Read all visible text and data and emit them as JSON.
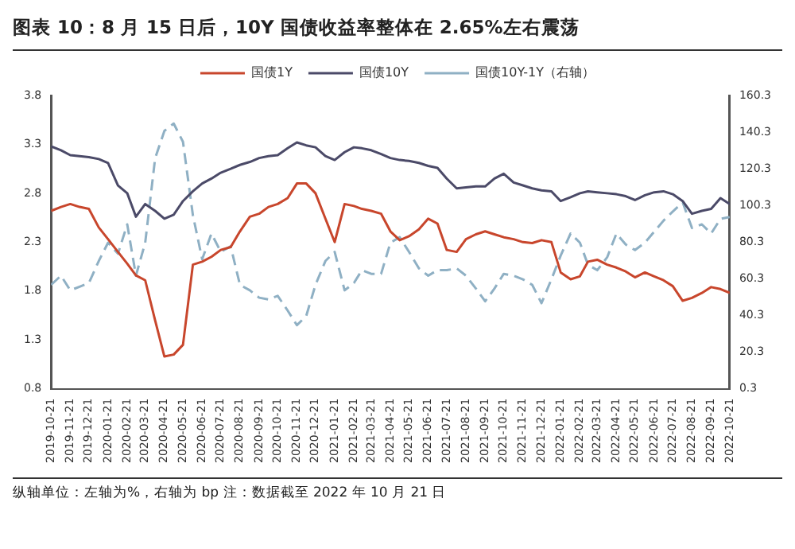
{
  "chart_data": {
    "type": "line",
    "title": "图表 10：8 月 15 日后，10Y 国债收益率整体在 2.65%左右震荡",
    "x": [
      "2019-10-21",
      "2019-11-06",
      "2019-11-21",
      "2019-12-06",
      "2019-12-21",
      "2020-01-06",
      "2020-01-21",
      "2020-02-06",
      "2020-02-21",
      "2020-03-06",
      "2020-03-21",
      "2020-04-06",
      "2020-04-21",
      "2020-05-06",
      "2020-05-21",
      "2020-06-06",
      "2020-06-21",
      "2020-07-06",
      "2020-07-21",
      "2020-08-06",
      "2020-08-21",
      "2020-09-06",
      "2020-09-21",
      "2020-10-06",
      "2020-10-21",
      "2020-11-06",
      "2020-11-21",
      "2020-12-06",
      "2020-12-21",
      "2021-01-06",
      "2021-01-21",
      "2021-02-06",
      "2021-02-21",
      "2021-03-06",
      "2021-03-21",
      "2021-04-06",
      "2021-04-21",
      "2021-05-06",
      "2021-05-21",
      "2021-06-06",
      "2021-06-21",
      "2021-07-06",
      "2021-07-21",
      "2021-08-06",
      "2021-08-21",
      "2021-09-06",
      "2021-09-21",
      "2021-10-06",
      "2021-10-21",
      "2021-11-06",
      "2021-11-21",
      "2021-12-06",
      "2021-12-21",
      "2022-01-06",
      "2022-01-21",
      "2022-02-06",
      "2022-02-21",
      "2022-03-06",
      "2022-03-21",
      "2022-04-06",
      "2022-04-21",
      "2022-05-06",
      "2022-05-21",
      "2022-06-06",
      "2022-06-21",
      "2022-07-06",
      "2022-07-21",
      "2022-08-06",
      "2022-08-21",
      "2022-09-06",
      "2022-09-21",
      "2022-10-06",
      "2022-10-21"
    ],
    "series": [
      {
        "name": "国债1Y",
        "color": "#c8462c",
        "values": [
          2.62,
          2.66,
          2.69,
          2.66,
          2.64,
          2.45,
          2.33,
          2.2,
          2.08,
          1.96,
          1.91,
          1.5,
          1.13,
          1.15,
          1.25,
          2.07,
          2.1,
          2.15,
          2.22,
          2.25,
          2.41,
          2.56,
          2.59,
          2.66,
          2.69,
          2.75,
          2.9,
          2.9,
          2.8,
          2.54,
          2.3,
          2.69,
          2.67,
          2.64,
          2.62,
          2.59,
          2.41,
          2.32,
          2.36,
          2.43,
          2.54,
          2.49,
          2.22,
          2.2,
          2.33,
          2.38,
          2.41,
          2.38,
          2.35,
          2.33,
          2.3,
          2.29,
          2.32,
          2.3,
          1.99,
          1.92,
          1.95,
          2.1,
          2.12,
          2.07,
          2.04,
          2.0,
          1.94,
          1.99,
          1.95,
          1.91,
          1.85,
          1.7,
          1.73,
          1.78,
          1.84,
          1.82,
          1.78
        ]
      },
      {
        "name": "国债10Y",
        "color": "#4b4a68",
        "values": [
          3.28,
          3.24,
          3.19,
          3.18,
          3.17,
          3.15,
          3.11,
          2.88,
          2.8,
          2.56,
          2.69,
          2.62,
          2.54,
          2.58,
          2.72,
          2.82,
          2.9,
          2.95,
          3.01,
          3.05,
          3.09,
          3.12,
          3.16,
          3.18,
          3.19,
          3.26,
          3.32,
          3.29,
          3.27,
          3.18,
          3.14,
          3.22,
          3.27,
          3.26,
          3.24,
          3.2,
          3.16,
          3.14,
          3.13,
          3.11,
          3.08,
          3.06,
          2.95,
          2.85,
          2.86,
          2.87,
          2.87,
          2.95,
          3.0,
          2.91,
          2.88,
          2.85,
          2.83,
          2.82,
          2.72,
          2.76,
          2.8,
          2.82,
          2.81,
          2.8,
          2.79,
          2.77,
          2.73,
          2.78,
          2.81,
          2.82,
          2.79,
          2.72,
          2.59,
          2.62,
          2.64,
          2.75,
          2.69
        ]
      },
      {
        "name": "国债10Y-1Y（右轴）",
        "color": "#8fb0c4",
        "axis": "y2",
        "line_style": "dashed",
        "values": [
          57,
          62,
          54,
          56,
          58,
          70,
          80,
          74,
          90,
          62,
          80,
          126,
          141,
          145,
          135,
          95,
          71,
          85,
          75,
          78,
          57,
          54,
          50,
          49,
          51,
          43,
          35,
          40,
          57,
          70,
          75,
          54,
          58,
          65,
          63,
          63,
          80,
          83,
          75,
          66,
          62,
          65,
          65,
          66,
          62,
          55,
          48,
          55,
          63,
          62,
          60,
          57,
          47,
          60,
          73,
          85,
          80,
          68,
          65,
          72,
          85,
          79,
          76,
          80,
          86,
          92,
          97,
          102,
          88,
          90,
          85,
          93,
          94
        ]
      }
    ],
    "xlim": [
      "2019-10-21",
      "2022-10-21"
    ],
    "xticks": [
      "2019-10-21",
      "2019-11-21",
      "2019-12-21",
      "2020-01-21",
      "2020-02-21",
      "2020-03-21",
      "2020-04-21",
      "2020-05-21",
      "2020-06-21",
      "2020-07-21",
      "2020-08-21",
      "2020-09-21",
      "2020-10-21",
      "2020-11-21",
      "2020-12-21",
      "2021-01-21",
      "2021-02-21",
      "2021-03-21",
      "2021-04-21",
      "2021-05-21",
      "2021-06-21",
      "2021-07-21",
      "2021-08-21",
      "2021-09-21",
      "2021-10-21",
      "2021-11-21",
      "2021-12-21",
      "2022-01-21",
      "2022-02-21",
      "2022-03-21",
      "2022-04-21",
      "2022-05-21",
      "2022-06-21",
      "2022-07-21",
      "2022-08-21",
      "2022-09-21",
      "2022-10-21"
    ],
    "ylim": [
      0.8,
      3.8
    ],
    "yticks": [
      0.8,
      1.3,
      1.8,
      2.3,
      2.8,
      3.3,
      3.8
    ],
    "y2lim": [
      0.3,
      160.3
    ],
    "y2ticks": [
      0.3,
      20.3,
      40.3,
      60.3,
      80.3,
      100.3,
      120.3,
      140.3,
      160.3
    ],
    "legend": "top",
    "marker": "none",
    "grid": false,
    "annotations": [
      "纵轴单位：左轴为%，右轴为 bp   注：数据截至 2022 年 10 月 21 日"
    ]
  }
}
